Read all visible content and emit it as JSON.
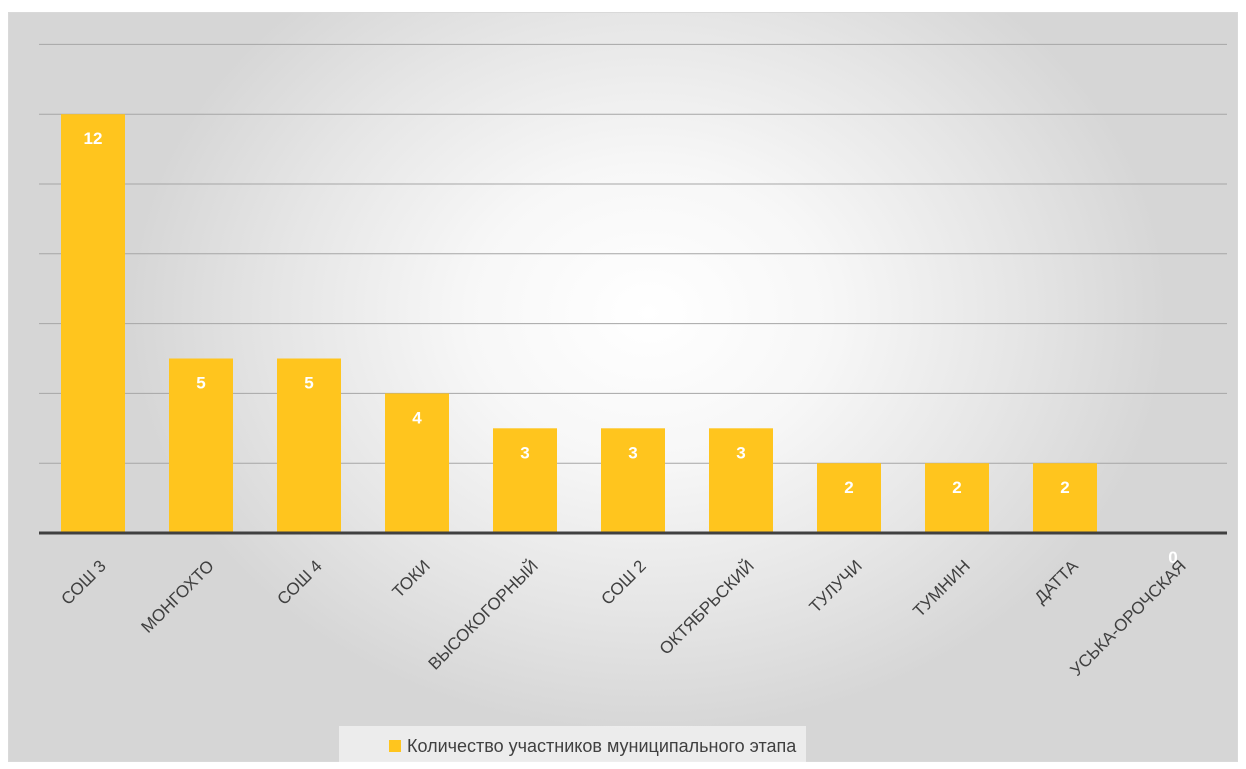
{
  "chart_data": {
    "type": "bar",
    "categories": [
      "СОШ 3",
      "МОНГОХТО",
      "СОШ 4",
      "ТОКИ",
      "ВЫСОКОГОРНЫЙ",
      "СОШ 2",
      "ОКТЯБРЬСКИЙ",
      "ТУЛУЧИ",
      "ТУМНИН",
      "ДАТТА",
      "УСЬКА-ОРОЧСКАЯ"
    ],
    "series": [
      {
        "name": "Количество участников муниципального этапа",
        "values": [
          12,
          5,
          5,
          4,
          3,
          3,
          3,
          2,
          2,
          2,
          0
        ]
      }
    ],
    "ylim": [
      0,
      14
    ],
    "grid": true,
    "legend_position": "bottom",
    "data_labels": true,
    "colors": {
      "bar": "#FFC51E",
      "gridline": "#a6a6a6",
      "axis": "#404040"
    }
  }
}
